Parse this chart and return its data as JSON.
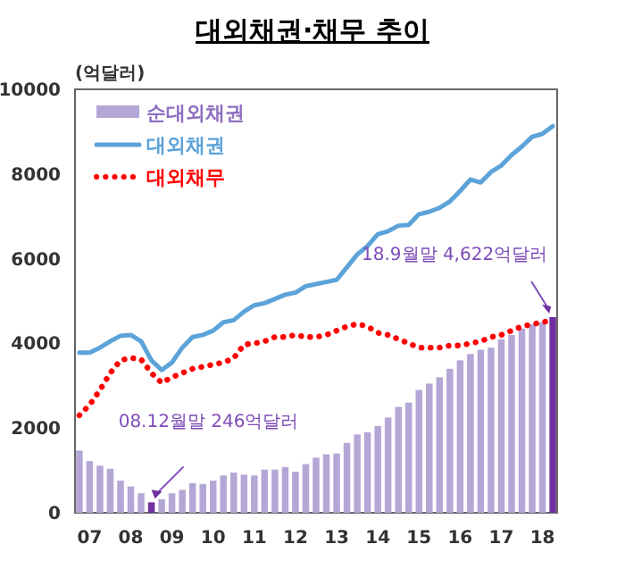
{
  "chart_data": {
    "type": "bar",
    "title": "대외채권·채무 추이",
    "ylabel": "(억달러)",
    "categories": [
      null,
      "07",
      null,
      null,
      null,
      "08",
      null,
      null,
      null,
      "09",
      null,
      null,
      null,
      "10",
      null,
      null,
      null,
      "11",
      null,
      null,
      null,
      "12",
      null,
      null,
      null,
      "13",
      null,
      null,
      null,
      "14",
      null,
      null,
      null,
      "15",
      null,
      null,
      null,
      "16",
      null,
      null,
      null,
      "17",
      null,
      null,
      null,
      "18",
      null
    ],
    "series": [
      {
        "name": "순대외채권",
        "color": "#b4a7d6",
        "colors": [
          "#b4a7d6",
          "#b4a7d6",
          "#b4a7d6",
          "#b4a7d6",
          "#b4a7d6",
          "#b4a7d6",
          "#b4a7d6",
          "#7030a0",
          "#b4a7d6",
          "#b4a7d6",
          "#b4a7d6",
          "#b4a7d6",
          "#b4a7d6",
          "#b4a7d6",
          "#b4a7d6",
          "#b4a7d6",
          "#b4a7d6",
          "#b4a7d6",
          "#b4a7d6",
          "#b4a7d6",
          "#b4a7d6",
          "#b4a7d6",
          "#b4a7d6",
          "#b4a7d6",
          "#b4a7d6",
          "#b4a7d6",
          "#b4a7d6",
          "#b4a7d6",
          "#b4a7d6",
          "#b4a7d6",
          "#b4a7d6",
          "#b4a7d6",
          "#b4a7d6",
          "#b4a7d6",
          "#b4a7d6",
          "#b4a7d6",
          "#b4a7d6",
          "#b4a7d6",
          "#b4a7d6",
          "#b4a7d6",
          "#b4a7d6",
          "#b4a7d6",
          "#b4a7d6",
          "#b4a7d6",
          "#b4a7d6",
          "#b4a7d6",
          "#7030a0"
        ],
        "values": [
          1470,
          1220,
          1110,
          1040,
          760,
          620,
          460,
          246,
          320,
          460,
          540,
          700,
          680,
          760,
          880,
          950,
          900,
          880,
          1020,
          1020,
          1080,
          970,
          1150,
          1300,
          1380,
          1400,
          1650,
          1850,
          1900,
          2050,
          2250,
          2500,
          2600,
          2900,
          3050,
          3200,
          3400,
          3600,
          3750,
          3850,
          3900,
          4100,
          4200,
          4350,
          4450,
          4500,
          4622
        ]
      },
      {
        "name": "대외채권",
        "type": "line",
        "color": "#5ba3d9",
        "line_style": "solid",
        "values": [
          3780,
          3780,
          3900,
          4050,
          4180,
          4200,
          4050,
          3600,
          3370,
          3550,
          3900,
          4150,
          4200,
          4300,
          4500,
          4550,
          4750,
          4900,
          4950,
          5050,
          5150,
          5200,
          5350,
          5400,
          5450,
          5500,
          5800,
          6100,
          6300,
          6580,
          6650,
          6780,
          6800,
          7050,
          7110,
          7200,
          7350,
          7600,
          7870,
          7800,
          8050,
          8200,
          8450,
          8650,
          8880,
          8950,
          9130
        ]
      },
      {
        "name": "대외채무",
        "type": "line",
        "color": "#ff0000",
        "line_style": "dotted",
        "values": [
          2300,
          2550,
          2900,
          3300,
          3600,
          3660,
          3620,
          3300,
          3070,
          3200,
          3300,
          3400,
          3450,
          3500,
          3550,
          3650,
          3970,
          4000,
          4050,
          4150,
          4150,
          4200,
          4150,
          4150,
          4200,
          4300,
          4400,
          4460,
          4400,
          4250,
          4200,
          4100,
          4000,
          3900,
          3900,
          3900,
          3950,
          3950,
          4000,
          4050,
          4150,
          4200,
          4300,
          4400,
          4450,
          4500,
          4550
        ]
      }
    ],
    "ylim": [
      0,
      10000
    ],
    "yticks": [
      0,
      2000,
      4000,
      6000,
      8000,
      10000
    ],
    "legend": "top left",
    "marker": "none",
    "grid": false,
    "annotations": [
      "08.12월말 246억달러",
      "18.9월말 4,622억달러"
    ]
  }
}
